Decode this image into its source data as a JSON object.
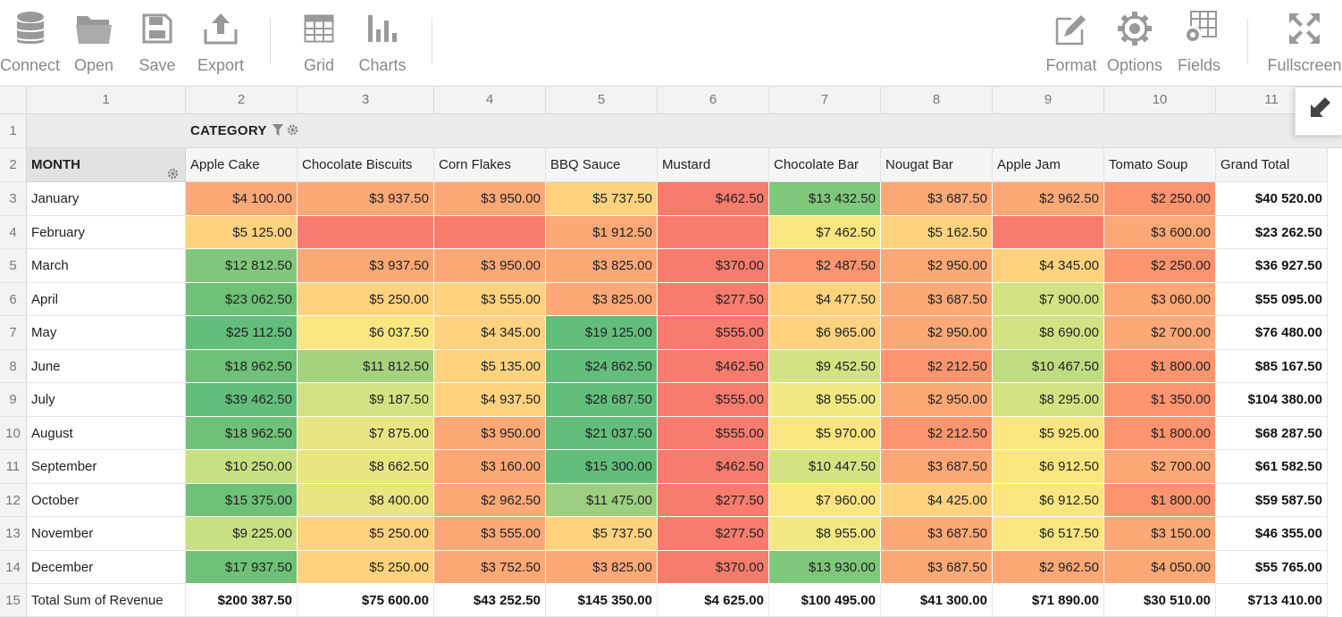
{
  "toolbar": {
    "left": [
      {
        "label": "Connect",
        "icon": "database-icon"
      },
      {
        "label": "Open",
        "icon": "folder-icon"
      },
      {
        "label": "Save",
        "icon": "save-icon"
      },
      {
        "label": "Export",
        "icon": "export-icon"
      },
      {
        "label": "Grid",
        "icon": "grid-icon"
      },
      {
        "label": "Charts",
        "icon": "bar-chart-icon"
      }
    ],
    "right": [
      {
        "label": "Format",
        "icon": "format-icon"
      },
      {
        "label": "Options",
        "icon": "gear-icon"
      },
      {
        "label": "Fields",
        "icon": "fields-icon"
      },
      {
        "label": "Fullscreen",
        "icon": "fullscreen-icon"
      }
    ]
  },
  "grid": {
    "column_numbers": [
      "1",
      "2",
      "3",
      "4",
      "5",
      "6",
      "7",
      "8",
      "9",
      "10",
      "11"
    ],
    "row_numbers": [
      "1",
      "2",
      "3",
      "4",
      "5",
      "6",
      "7",
      "8",
      "9",
      "10",
      "11",
      "12",
      "13",
      "14",
      "15"
    ],
    "category_label": "CATEGORY",
    "month_label": "MONTH",
    "columns": [
      "Apple Cake",
      "Chocolate Biscuits",
      "Corn Flakes",
      "BBQ Sauce",
      "Mustard",
      "Chocolate Bar",
      "Nougat Bar",
      "Apple Jam",
      "Tomato Soup",
      "Grand Total"
    ],
    "rows": [
      {
        "month": "January",
        "values": [
          "$4 100.00",
          "$3 937.50",
          "$3 950.00",
          "$5 737.50",
          "$462.50",
          "$13 432.50",
          "$3 687.50",
          "$2 962.50",
          "$2 250.00",
          "$40 520.00"
        ]
      },
      {
        "month": "February",
        "values": [
          "$5 125.00",
          "",
          "",
          "$1 912.50",
          "",
          "$7 462.50",
          "$5 162.50",
          "",
          "$3 600.00",
          "$23 262.50"
        ]
      },
      {
        "month": "March",
        "values": [
          "$12 812.50",
          "$3 937.50",
          "$3 950.00",
          "$3 825.00",
          "$370.00",
          "$2 487.50",
          "$2 950.00",
          "$4 345.00",
          "$2 250.00",
          "$36 927.50"
        ]
      },
      {
        "month": "April",
        "values": [
          "$23 062.50",
          "$5 250.00",
          "$3 555.00",
          "$3 825.00",
          "$277.50",
          "$4 477.50",
          "$3 687.50",
          "$7 900.00",
          "$3 060.00",
          "$55 095.00"
        ]
      },
      {
        "month": "May",
        "values": [
          "$25 112.50",
          "$6 037.50",
          "$4 345.00",
          "$19 125.00",
          "$555.00",
          "$6 965.00",
          "$2 950.00",
          "$8 690.00",
          "$2 700.00",
          "$76 480.00"
        ]
      },
      {
        "month": "June",
        "values": [
          "$18 962.50",
          "$11 812.50",
          "$5 135.00",
          "$24 862.50",
          "$462.50",
          "$9 452.50",
          "$2 212.50",
          "$10 467.50",
          "$1 800.00",
          "$85 167.50"
        ]
      },
      {
        "month": "July",
        "values": [
          "$39 462.50",
          "$9 187.50",
          "$4 937.50",
          "$28 687.50",
          "$555.00",
          "$8 955.00",
          "$2 950.00",
          "$8 295.00",
          "$1 350.00",
          "$104 380.00"
        ]
      },
      {
        "month": "August",
        "values": [
          "$18 962.50",
          "$7 875.00",
          "$3 950.00",
          "$21 037.50",
          "$555.00",
          "$5 970.00",
          "$2 212.50",
          "$5 925.00",
          "$1 800.00",
          "$68 287.50"
        ]
      },
      {
        "month": "September",
        "values": [
          "$10 250.00",
          "$8 662.50",
          "$3 160.00",
          "$15 300.00",
          "$462.50",
          "$10 447.50",
          "$3 687.50",
          "$6 912.50",
          "$2 700.00",
          "$61 582.50"
        ]
      },
      {
        "month": "October",
        "values": [
          "$15 375.00",
          "$8 400.00",
          "$2 962.50",
          "$11 475.00",
          "$277.50",
          "$7 960.00",
          "$4 425.00",
          "$6 912.50",
          "$1 800.00",
          "$59 587.50"
        ]
      },
      {
        "month": "November",
        "values": [
          "$9 225.00",
          "$5 250.00",
          "$3 555.00",
          "$5 737.50",
          "$277.50",
          "$8 955.00",
          "$3 687.50",
          "$6 517.50",
          "$3 150.00",
          "$46 355.00"
        ]
      },
      {
        "month": "December",
        "values": [
          "$17 937.50",
          "$5 250.00",
          "$3 752.50",
          "$3 825.00",
          "$370.00",
          "$13 930.00",
          "$3 687.50",
          "$2 962.50",
          "$4 050.00",
          "$55 765.00"
        ]
      }
    ],
    "colors": [
      [
        "#fca877",
        "#fca877",
        "#fca877",
        "#fed27f",
        "#f87c6e",
        "#7fc77b",
        "#fca877",
        "#fca877",
        "#fb946f"
      ],
      [
        "#fed27f",
        "#f87c6e",
        "#f87c6e",
        "#fca877",
        "#f87c6e",
        "#f9e680",
        "#fed27f",
        "#f87c6e",
        "#fca877"
      ],
      [
        "#80c77c",
        "#fca877",
        "#fca877",
        "#fca877",
        "#f87c6e",
        "#fb946f",
        "#fca877",
        "#fed27f",
        "#fb946f"
      ],
      [
        "#6ec176",
        "#fed27f",
        "#fed27f",
        "#fca877",
        "#f87c6e",
        "#fed27f",
        "#fca877",
        "#d3e384",
        "#fca877"
      ],
      [
        "#63be7b",
        "#f9e680",
        "#fed27f",
        "#63be7b",
        "#f87c6e",
        "#fed27f",
        "#fca877",
        "#d3e384",
        "#fca877"
      ],
      [
        "#6ec176",
        "#a6d27f",
        "#fed27f",
        "#63be7b",
        "#f87c6e",
        "#d3e384",
        "#fb946f",
        "#bfdc80",
        "#fb946f"
      ],
      [
        "#63be7b",
        "#d3e384",
        "#fed27f",
        "#63be7b",
        "#f87c6e",
        "#f0e883",
        "#fca877",
        "#d3e384",
        "#fb946f"
      ],
      [
        "#6ec176",
        "#e8e583",
        "#fca877",
        "#63be7b",
        "#f87c6e",
        "#f9e680",
        "#fb946f",
        "#f9e680",
        "#fb946f"
      ],
      [
        "#c8df82",
        "#e8e583",
        "#fca877",
        "#63be7b",
        "#f87c6e",
        "#d3e384",
        "#fca877",
        "#f9e680",
        "#fca877"
      ],
      [
        "#6ec176",
        "#e8e583",
        "#fca877",
        "#9ccf7f",
        "#f87c6e",
        "#f9e680",
        "#fed27f",
        "#f9e680",
        "#fb946f"
      ],
      [
        "#c8df82",
        "#fed27f",
        "#fca877",
        "#fed27f",
        "#f87c6e",
        "#f0e883",
        "#fca877",
        "#f9e680",
        "#fca877"
      ],
      [
        "#6ec176",
        "#fed27f",
        "#fca877",
        "#fca877",
        "#f87c6e",
        "#7fc77b",
        "#fca877",
        "#fca877",
        "#fca877"
      ]
    ],
    "total_label": "Total Sum of Revenue",
    "totals": [
      "$200 387.50",
      "$75 600.00",
      "$43 252.50",
      "$145 350.00",
      "$4 625.00",
      "$100 495.00",
      "$41 300.00",
      "$71 890.00",
      "$30 510.00",
      "$713 410.00"
    ]
  }
}
